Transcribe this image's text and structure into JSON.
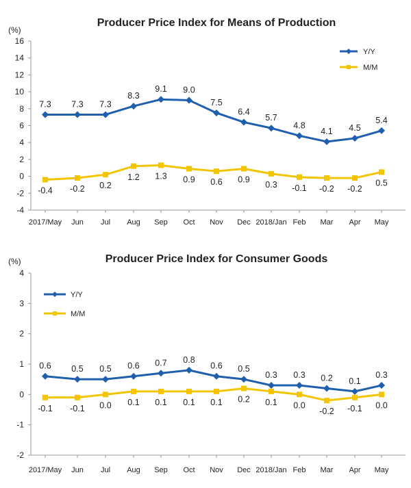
{
  "chart_data": [
    {
      "type": "line",
      "title": "Producer Price Index for Means of Production",
      "unit_label": "(%)",
      "categories": [
        "2017/May",
        "Jun",
        "Jul",
        "Aug",
        "Sep",
        "Oct",
        "Nov",
        "Dec",
        "2018/Jan",
        "Feb",
        "Mar",
        "Apr",
        "May"
      ],
      "series": [
        {
          "name": "Y/Y",
          "color": "#1f5fae",
          "values": [
            7.3,
            7.3,
            7.3,
            8.3,
            9.1,
            9.0,
            7.5,
            6.4,
            5.7,
            4.8,
            4.1,
            4.5,
            5.4
          ],
          "label_position": "above"
        },
        {
          "name": "M/M",
          "color": "#f2c500",
          "values": [
            -0.4,
            -0.2,
            0.2,
            1.2,
            1.3,
            0.9,
            0.6,
            0.9,
            0.3,
            -0.1,
            -0.2,
            -0.2,
            0.5
          ],
          "label_position": "below"
        }
      ],
      "ylim": [
        -4,
        16
      ],
      "yticks": [
        -4,
        -2,
        0,
        2,
        4,
        6,
        8,
        10,
        12,
        14,
        16
      ],
      "legend": "top-right",
      "grid": false
    },
    {
      "type": "line",
      "title": "Producer Price Index for Consumer Goods",
      "unit_label": "(%)",
      "categories": [
        "2017/May",
        "Jun",
        "Jul",
        "Aug",
        "Sep",
        "Oct",
        "Nov",
        "Dec",
        "2018/Jan",
        "Feb",
        "Mar",
        "Apr",
        "May"
      ],
      "series": [
        {
          "name": "Y/Y",
          "color": "#1f5fae",
          "values": [
            0.6,
            0.5,
            0.5,
            0.6,
            0.7,
            0.8,
            0.6,
            0.5,
            0.3,
            0.3,
            0.2,
            0.1,
            0.3
          ],
          "label_position": "above"
        },
        {
          "name": "M/M",
          "color": "#f2c500",
          "values": [
            -0.1,
            -0.1,
            0.0,
            0.1,
            0.1,
            0.1,
            0.1,
            0.2,
            0.1,
            0.0,
            -0.2,
            -0.1,
            0.0
          ],
          "label_position": "below"
        }
      ],
      "ylim": [
        -2,
        4
      ],
      "yticks": [
        -2,
        -1,
        0,
        1,
        2,
        3,
        4
      ],
      "legend": "top-left",
      "grid": false
    }
  ]
}
